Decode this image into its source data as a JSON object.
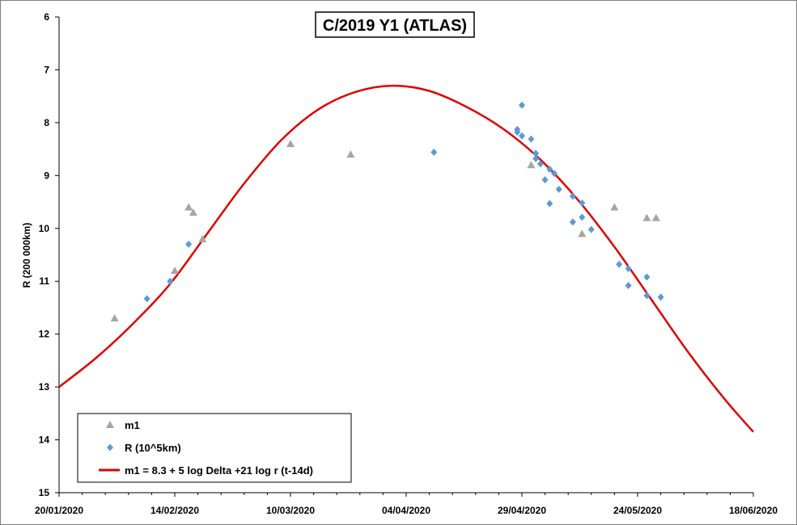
{
  "chart_data": {
    "type": "scatter",
    "title": "C/2019 Y1 (ATLAS)",
    "ylabel": "R (200 000km)",
    "xlabel": "",
    "x_axis": {
      "type": "date",
      "min": "2020-01-20",
      "max": "2020-06-18"
    },
    "y_axis": {
      "min": 6,
      "max": 15,
      "inverted": true
    },
    "x_tick_labels": [
      {
        "date": "2020-01-20",
        "label": "20/01/2020"
      },
      {
        "date": "2020-02-14",
        "label": "14/02/2020"
      },
      {
        "date": "2020-03-10",
        "label": "10/03/2020"
      },
      {
        "date": "2020-04-04",
        "label": "04/04/2020"
      },
      {
        "date": "2020-04-29",
        "label": "29/04/2020"
      },
      {
        "date": "2020-05-24",
        "label": "24/05/2020"
      },
      {
        "date": "2020-06-18",
        "label": "18/06/2020"
      }
    ],
    "y_ticks": [
      6,
      7,
      8,
      9,
      10,
      11,
      12,
      13,
      14,
      15
    ],
    "grid": false,
    "legend_position": "bottom-left",
    "series": [
      {
        "name": "m1",
        "marker": "triangle",
        "color": "#a5a5a5",
        "points": [
          {
            "x": "2020-02-01",
            "y": 11.7
          },
          {
            "x": "2020-02-14",
            "y": 10.8
          },
          {
            "x": "2020-02-17",
            "y": 9.6
          },
          {
            "x": "2020-02-18",
            "y": 9.7
          },
          {
            "x": "2020-02-20",
            "y": 10.2
          },
          {
            "x": "2020-03-10",
            "y": 8.4
          },
          {
            "x": "2020-03-23",
            "y": 8.6
          },
          {
            "x": "2020-05-01",
            "y": 8.8
          },
          {
            "x": "2020-05-12",
            "y": 10.1
          },
          {
            "x": "2020-05-19",
            "y": 9.6
          },
          {
            "x": "2020-05-26",
            "y": 9.8
          },
          {
            "x": "2020-05-28",
            "y": 9.8
          }
        ]
      },
      {
        "name": "R (10^5km)",
        "marker": "diamond",
        "color": "#5b9bd5",
        "points": [
          {
            "x": "2020-02-08",
            "y": 11.33
          },
          {
            "x": "2020-02-13",
            "y": 11.0
          },
          {
            "x": "2020-02-17",
            "y": 10.3
          },
          {
            "x": "2020-04-10",
            "y": 8.56
          },
          {
            "x": "2020-04-28",
            "y": 8.13
          },
          {
            "x": "2020-04-28",
            "y": 8.18
          },
          {
            "x": "2020-04-29",
            "y": 8.25
          },
          {
            "x": "2020-04-29",
            "y": 7.67
          },
          {
            "x": "2020-05-01",
            "y": 8.31
          },
          {
            "x": "2020-05-02",
            "y": 8.58
          },
          {
            "x": "2020-05-02",
            "y": 8.68
          },
          {
            "x": "2020-05-03",
            "y": 8.78
          },
          {
            "x": "2020-05-04",
            "y": 9.08
          },
          {
            "x": "2020-05-05",
            "y": 8.88
          },
          {
            "x": "2020-05-05",
            "y": 9.53
          },
          {
            "x": "2020-05-06",
            "y": 8.96
          },
          {
            "x": "2020-05-07",
            "y": 9.26
          },
          {
            "x": "2020-05-10",
            "y": 9.39
          },
          {
            "x": "2020-05-10",
            "y": 9.88
          },
          {
            "x": "2020-05-12",
            "y": 9.52
          },
          {
            "x": "2020-05-12",
            "y": 9.79
          },
          {
            "x": "2020-05-14",
            "y": 10.02
          },
          {
            "x": "2020-05-20",
            "y": 10.68
          },
          {
            "x": "2020-05-22",
            "y": 10.76
          },
          {
            "x": "2020-05-22",
            "y": 11.08
          },
          {
            "x": "2020-05-26",
            "y": 10.92
          },
          {
            "x": "2020-05-26",
            "y": 11.27
          },
          {
            "x": "2020-05-29",
            "y": 11.3
          }
        ]
      },
      {
        "name": "m1 = 8.3 + 5 log Delta +21 log r (t-14d)",
        "type": "line",
        "color": "#e00000",
        "points": [
          {
            "x": "2020-01-20",
            "y": 13.0
          },
          {
            "x": "2020-01-28",
            "y": 12.45
          },
          {
            "x": "2020-02-05",
            "y": 11.8
          },
          {
            "x": "2020-02-13",
            "y": 11.05
          },
          {
            "x": "2020-02-21",
            "y": 10.1
          },
          {
            "x": "2020-02-29",
            "y": 9.15
          },
          {
            "x": "2020-03-08",
            "y": 8.33
          },
          {
            "x": "2020-03-16",
            "y": 7.75
          },
          {
            "x": "2020-03-24",
            "y": 7.42
          },
          {
            "x": "2020-04-01",
            "y": 7.3
          },
          {
            "x": "2020-04-09",
            "y": 7.4
          },
          {
            "x": "2020-04-17",
            "y": 7.7
          },
          {
            "x": "2020-04-25",
            "y": 8.12
          },
          {
            "x": "2020-05-03",
            "y": 8.7
          },
          {
            "x": "2020-05-11",
            "y": 9.45
          },
          {
            "x": "2020-05-19",
            "y": 10.35
          },
          {
            "x": "2020-05-27",
            "y": 11.35
          },
          {
            "x": "2020-06-04",
            "y": 12.35
          },
          {
            "x": "2020-06-12",
            "y": 13.25
          },
          {
            "x": "2020-06-18",
            "y": 13.85
          }
        ]
      }
    ]
  }
}
